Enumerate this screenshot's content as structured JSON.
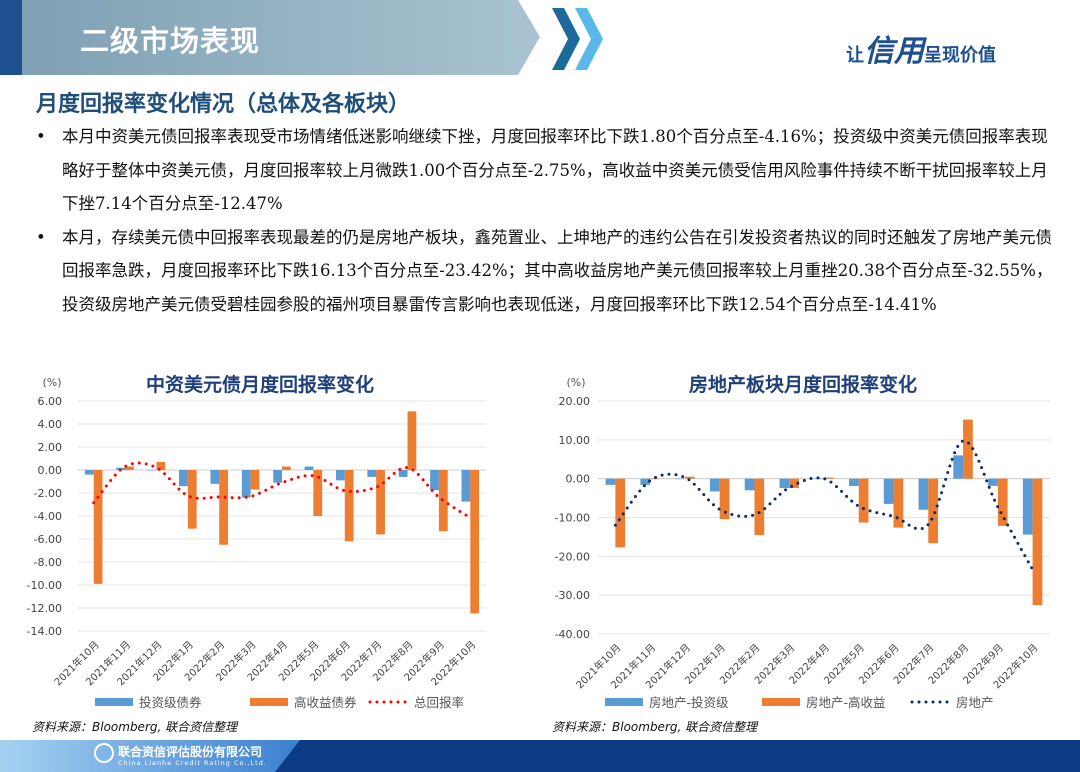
{
  "header": {
    "title": "二级市场表现",
    "slogan_pre": "让",
    "slogan_big": "信用",
    "slogan_post": "呈现价值"
  },
  "section_title": "月度回报率变化情况（总体及各板块）",
  "bullets": [
    "本月中资美元债回报率表现受市场情绪低迷影响继续下挫，月度回报率环比下跌1.80个百分点至-4.16%；投资级中资美元债回报率表现略好于整体中资美元债，月度回报率较上月微跌1.00个百分点至-2.75%，高收益中资美元债受信用风险事件持续不断干扰回报率较上月下挫7.14个百分点至-12.47%",
    "本月，存续美元债中回报率表现最差的仍是房地产板块，鑫苑置业、上坤地产的违约公告在引发投资者热议的同时还触发了房地产美元债回报率急跌，月度回报率环比下跌16.13个百分点至-23.42%；其中高收益房地产美元债回报率较上月重挫20.38个百分点至-32.55%，投资级房地产美元债受碧桂园参股的福州项目暴雷传言影响也表现低迷，月度回报率环比下跌12.54个百分点至-14.41%"
  ],
  "source_note": "资料来源：Bloomberg, 联合资信整理",
  "footer": {
    "company": "联合资信评估股份有限公司",
    "company_en": "China Lianhe Credit Rating Co.,Ltd."
  },
  "chart_data": [
    {
      "type": "bar",
      "title": "中资美元债月度回报率变化",
      "ylabel": "(%)",
      "ylim": [
        -14,
        6
      ],
      "yticks": [
        "6.00",
        "4.00",
        "2.00",
        "0.00",
        "-2.00",
        "-4.00",
        "-6.00",
        "-8.00",
        "-10.00",
        "-12.00",
        "-14.00"
      ],
      "categories": [
        "2021年10月",
        "2021年11月",
        "2021年12月",
        "2022年1月",
        "2022年2月",
        "2022年3月",
        "2022年4月",
        "2022年5月",
        "2022年6月",
        "2022年7月",
        "2022年8月",
        "2022年9月",
        "2022年10月"
      ],
      "series": [
        {
          "name": "投资级债券",
          "kind": "bar",
          "color": "#5b9bd5",
          "values": [
            -0.4,
            0.2,
            0,
            -1.4,
            -1.2,
            -2.4,
            -1.1,
            0.3,
            -0.9,
            -0.6,
            -0.6,
            -1.75,
            -2.75
          ]
        },
        {
          "name": "高收益债券",
          "kind": "bar",
          "color": "#ed7d31",
          "values": [
            -9.9,
            0.3,
            0.7,
            -5.1,
            -6.5,
            -1.7,
            0.3,
            -4.0,
            -6.2,
            -5.6,
            5.1,
            -5.33,
            -12.47
          ]
        },
        {
          "name": "总回报率",
          "kind": "dotted-line",
          "color": "#ff0000",
          "values": [
            -2.85,
            0.3,
            0.2,
            -2.25,
            -2.35,
            -2.3,
            -1.1,
            -0.5,
            -1.8,
            -1.5,
            0.2,
            -2.36,
            -4.16
          ]
        }
      ],
      "grid": true,
      "legend": "bottom"
    },
    {
      "type": "bar",
      "title": "房地产板块月度回报率变化",
      "ylabel": "(%)",
      "ylim": [
        -40,
        20
      ],
      "yticks": [
        "20.00",
        "10.00",
        "0.00",
        "-10.00",
        "-20.00",
        "-30.00",
        "-40.00"
      ],
      "categories": [
        "2021年10月",
        "2021年11月",
        "2021年12月",
        "2022年1月",
        "2022年2月",
        "2022年3月",
        "2022年4月",
        "2022年5月",
        "2022年6月",
        "2022年7月",
        "2022年8月",
        "2022年9月",
        "2022年10月"
      ],
      "series": [
        {
          "name": "房地产-投资级",
          "kind": "bar",
          "color": "#5b9bd5",
          "values": [
            -1.6,
            -1.6,
            0,
            -3.3,
            -3.0,
            -2.4,
            0,
            -1.9,
            -6.5,
            -8.0,
            6.0,
            -1.87,
            -14.41
          ]
        },
        {
          "name": "房地产-高收益",
          "kind": "bar",
          "color": "#ed7d31",
          "values": [
            -17.7,
            0,
            0.5,
            -10.4,
            -14.5,
            -2.4,
            0.3,
            -11.3,
            -12.6,
            -16.6,
            15.2,
            -12.17,
            -32.55
          ]
        },
        {
          "name": "房地产",
          "kind": "dotted-line",
          "color": "#0d2b6b",
          "values": [
            -12.0,
            -0.5,
            0.3,
            -7.9,
            -9.3,
            -2.3,
            0,
            -7.1,
            -9.7,
            -11.8,
            9.7,
            -7.29,
            -23.42
          ]
        }
      ],
      "grid": true,
      "legend": "bottom"
    }
  ]
}
